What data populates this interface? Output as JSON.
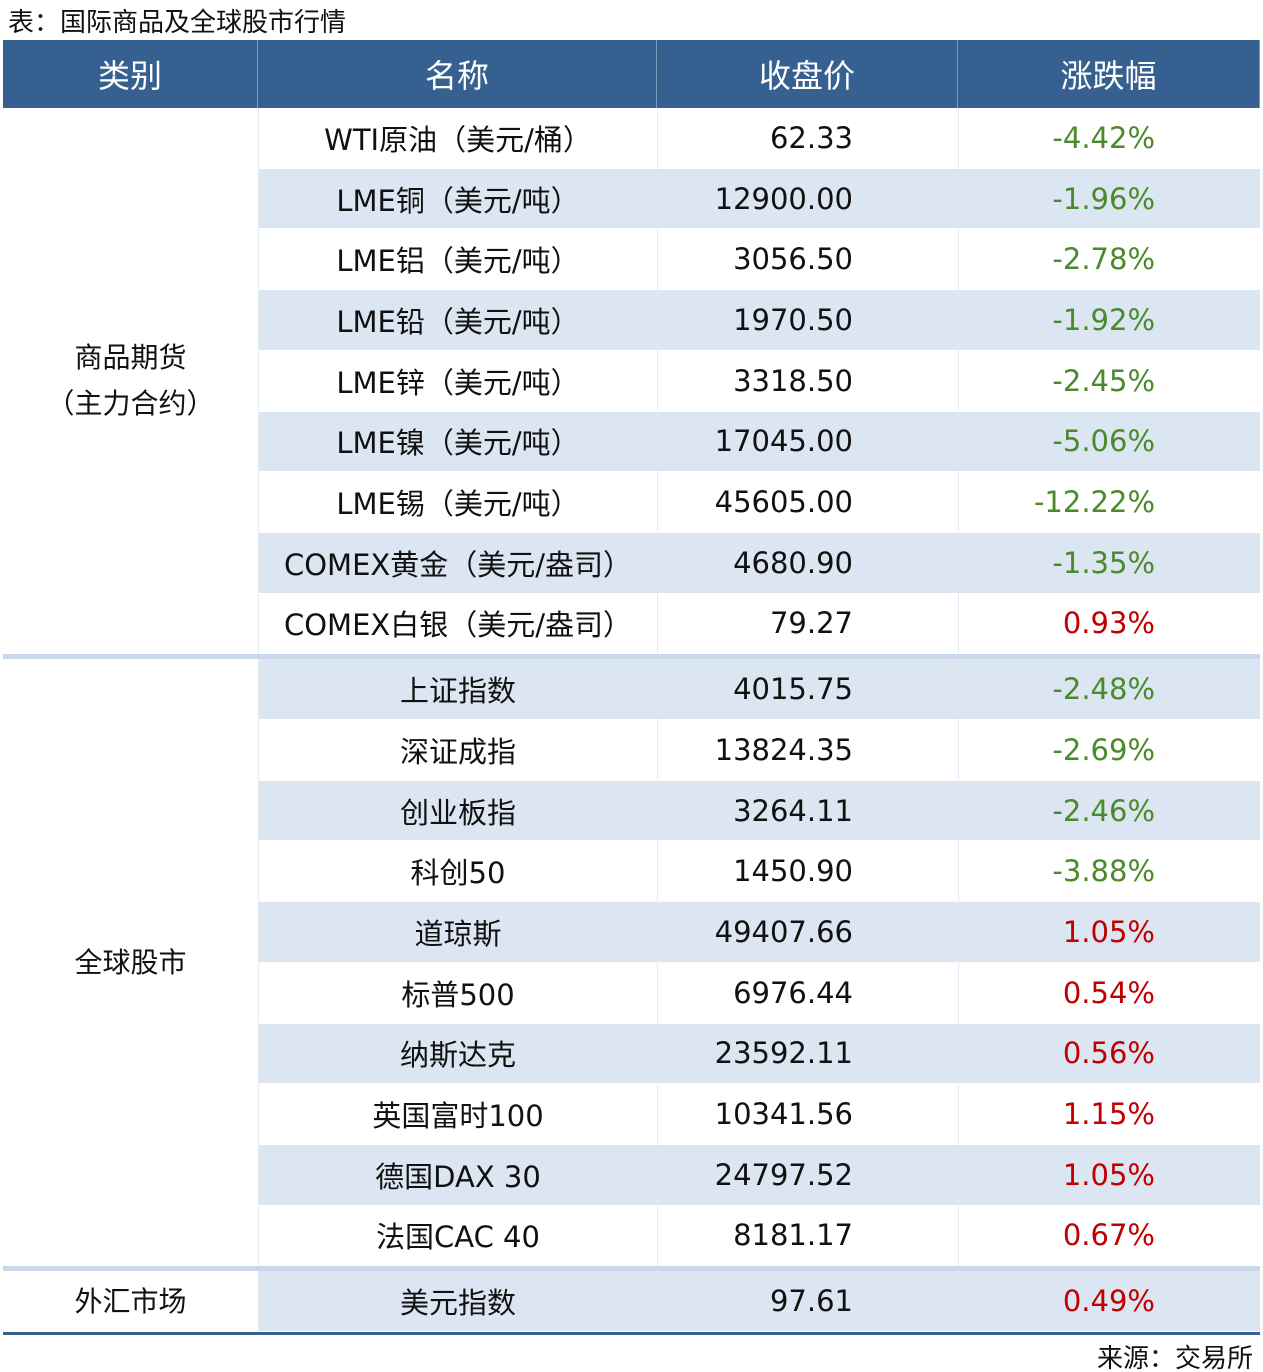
{
  "title": "表：国际商品及全球股市行情",
  "header": [
    "类别",
    "名称",
    "收盘价",
    "涨跌幅"
  ],
  "groups": [
    {
      "category": [
        "商品期货",
        "（主力合约）"
      ],
      "rows": [
        [
          "WTI原油（美元/桶）",
          "62.33",
          "-4.42%"
        ],
        [
          "LME铜（美元/吨）",
          "12900.00",
          "-1.96%"
        ],
        [
          "LME铝（美元/吨）",
          "3056.50",
          "-2.78%"
        ],
        [
          "LME铅（美元/吨）",
          "1970.50",
          "-1.92%"
        ],
        [
          "LME锌（美元/吨）",
          "3318.50",
          "-2.45%"
        ],
        [
          "LME镍（美元/吨）",
          "17045.00",
          "-5.06%"
        ],
        [
          "LME锡（美元/吨）",
          "45605.00",
          "-12.22%"
        ],
        [
          "COMEX黄金（美元/盎司）",
          "4680.90",
          "-1.35%"
        ],
        [
          "COMEX白银（美元/盎司）",
          "79.27",
          "0.93%"
        ]
      ]
    },
    {
      "category": [
        "全球股市"
      ],
      "rows": [
        [
          "上证指数",
          "4015.75",
          "-2.48%"
        ],
        [
          "深证成指",
          "13824.35",
          "-2.69%"
        ],
        [
          "创业板指",
          "3264.11",
          "-2.46%"
        ],
        [
          "科创50",
          "1450.90",
          "-3.88%"
        ],
        [
          "道琼斯",
          "49407.66",
          "1.05%"
        ],
        [
          "标普500",
          "6976.44",
          "0.54%"
        ],
        [
          "纳斯达克",
          "23592.11",
          "0.56%"
        ],
        [
          "英国富时100",
          "10341.56",
          "1.15%"
        ],
        [
          "德国DAX 30",
          "24797.52",
          "1.05%"
        ],
        [
          "法国CAC 40",
          "8181.17",
          "0.67%"
        ]
      ]
    },
    {
      "category": [
        "外汇市场"
      ],
      "rows": [
        [
          "美元指数",
          "97.61",
          "0.49%"
        ]
      ]
    }
  ],
  "source": "来源：交易所"
}
